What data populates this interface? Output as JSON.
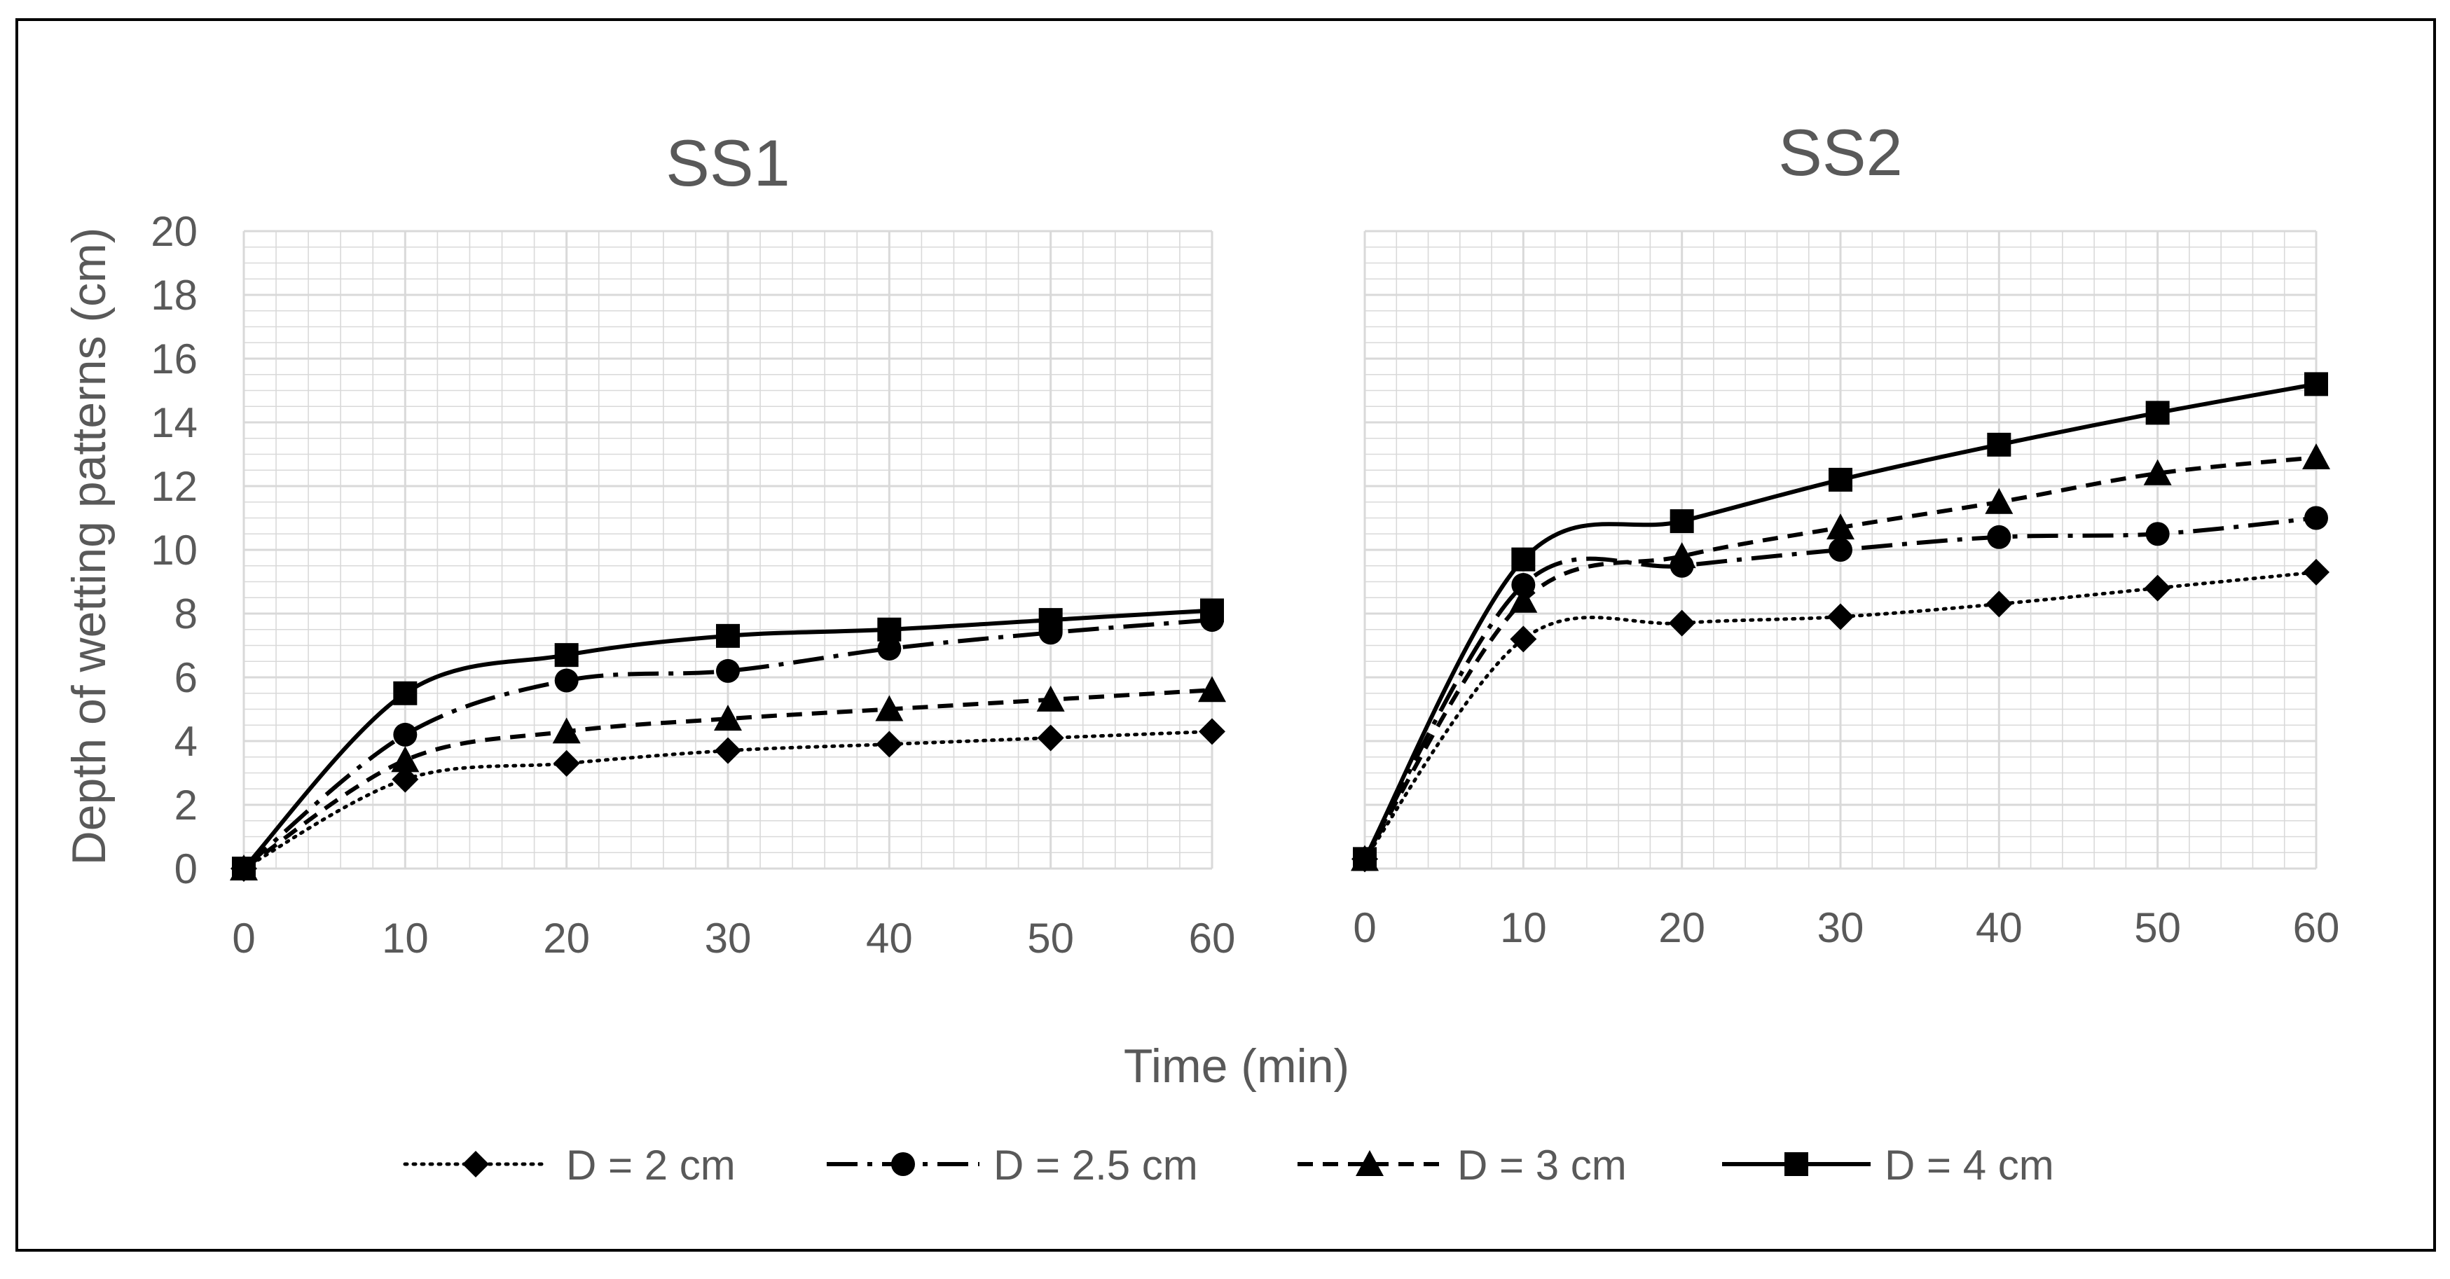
{
  "figure": {
    "ylabel": "Depth of wetting patterns (cm)",
    "xlabel": "Time (min)"
  },
  "legend": [
    {
      "label": "D = 2 cm",
      "marker": "diamond",
      "dash": "dotted"
    },
    {
      "label": "D = 2.5 cm",
      "marker": "circle",
      "dash": "long-dash-dot"
    },
    {
      "label": "D = 3 cm",
      "marker": "triangle",
      "dash": "dashed"
    },
    {
      "label": "D = 4 cm",
      "marker": "square",
      "dash": "solid"
    }
  ],
  "colors": {
    "series": "#000000",
    "text": "#595959",
    "grid": "#d9d9d9",
    "frame": "#000000"
  },
  "chart_data": [
    {
      "type": "line",
      "title": "SS1",
      "x": [
        0,
        10,
        20,
        30,
        40,
        50,
        60
      ],
      "xticks": [
        "0",
        "10",
        "20",
        "30",
        "40",
        "50",
        "60"
      ],
      "yticks": [
        "0",
        "2",
        "4",
        "6",
        "8",
        "10",
        "12",
        "14",
        "16",
        "18",
        "20"
      ],
      "xlim": [
        0,
        60
      ],
      "ylim": [
        0,
        20
      ],
      "grid": true,
      "series": [
        {
          "name": "D = 2 cm",
          "values": [
            0,
            2.8,
            3.3,
            3.7,
            3.9,
            4.1,
            4.3
          ]
        },
        {
          "name": "D = 2.5 cm",
          "values": [
            0,
            4.2,
            5.9,
            6.2,
            6.9,
            7.4,
            7.8
          ]
        },
        {
          "name": "D = 3 cm",
          "values": [
            0,
            3.4,
            4.3,
            4.7,
            5.0,
            5.3,
            5.6
          ]
        },
        {
          "name": "D = 4 cm",
          "values": [
            0,
            5.5,
            6.7,
            7.3,
            7.5,
            7.8,
            8.1
          ]
        }
      ]
    },
    {
      "type": "line",
      "title": "SS2",
      "x": [
        0,
        10,
        20,
        30,
        40,
        50,
        60
      ],
      "xticks": [
        "0",
        "10",
        "20",
        "30",
        "40",
        "50",
        "60"
      ],
      "xlim": [
        0,
        60
      ],
      "ylim": [
        0,
        20
      ],
      "grid": true,
      "series": [
        {
          "name": "D = 2 cm",
          "values": [
            0.3,
            7.2,
            7.7,
            7.9,
            8.3,
            8.8,
            9.3
          ]
        },
        {
          "name": "D = 2.5 cm",
          "values": [
            0.3,
            8.9,
            9.5,
            10.0,
            10.4,
            10.5,
            11.0
          ]
        },
        {
          "name": "D = 3 cm",
          "values": [
            0.3,
            8.4,
            9.8,
            10.7,
            11.5,
            12.4,
            12.9
          ]
        },
        {
          "name": "D = 4 cm",
          "values": [
            0.3,
            9.7,
            10.9,
            12.2,
            13.3,
            14.3,
            15.2
          ]
        }
      ]
    }
  ]
}
